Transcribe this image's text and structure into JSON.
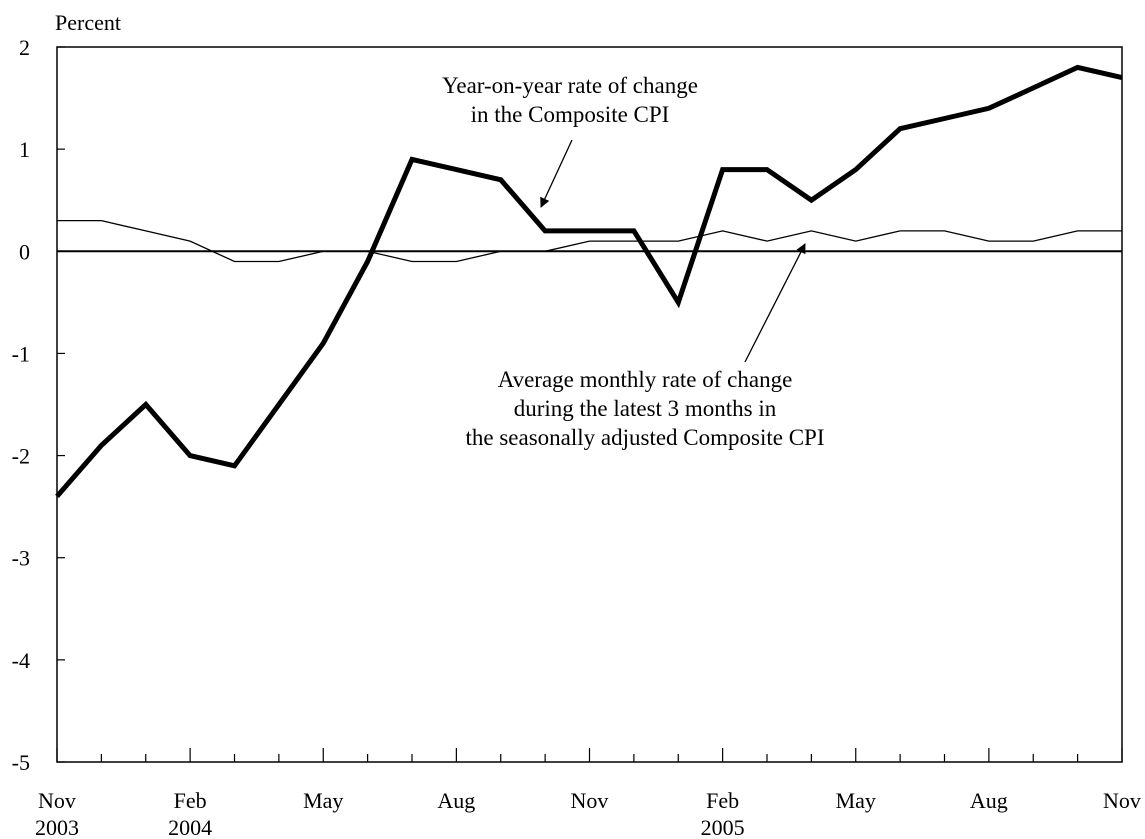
{
  "chart_data": {
    "type": "line",
    "title": "",
    "ylabel": "Percent",
    "xlabel": "",
    "ylim": [
      -5,
      2
    ],
    "yticks": [
      2,
      1,
      0,
      -1,
      -2,
      -3,
      -4,
      -5
    ],
    "grid": false,
    "x_months": [
      "2003-11",
      "2003-12",
      "2004-01",
      "2004-02",
      "2004-03",
      "2004-04",
      "2004-05",
      "2004-06",
      "2004-07",
      "2004-08",
      "2004-09",
      "2004-10",
      "2004-11",
      "2004-12",
      "2005-01",
      "2005-02",
      "2005-03",
      "2005-04",
      "2005-05",
      "2005-06",
      "2005-07",
      "2005-08",
      "2005-09",
      "2005-10",
      "2005-11"
    ],
    "x_tick_labels": [
      {
        "month": "2003-11",
        "label": "Nov",
        "year": "2003"
      },
      {
        "month": "2004-02",
        "label": "Feb",
        "year": "2004"
      },
      {
        "month": "2004-05",
        "label": "May",
        "year": ""
      },
      {
        "month": "2004-08",
        "label": "Aug",
        "year": ""
      },
      {
        "month": "2004-11",
        "label": "Nov",
        "year": ""
      },
      {
        "month": "2005-02",
        "label": "Feb",
        "year": "2005"
      },
      {
        "month": "2005-05",
        "label": "May",
        "year": ""
      },
      {
        "month": "2005-08",
        "label": "Aug",
        "year": ""
      },
      {
        "month": "2005-11",
        "label": "Nov",
        "year": ""
      }
    ],
    "series": [
      {
        "style": "thick",
        "values": [
          -2.4,
          -1.9,
          -1.5,
          -2.0,
          -2.1,
          -1.5,
          -0.9,
          -0.1,
          0.9,
          0.8,
          0.7,
          0.2,
          0.2,
          0.2,
          -0.5,
          0.8,
          0.8,
          0.5,
          0.8,
          1.2,
          1.3,
          1.4,
          1.6,
          1.8,
          1.7
        ]
      },
      {
        "style": "thin",
        "values": [
          0.3,
          0.3,
          0.2,
          0.1,
          -0.1,
          -0.1,
          0.0,
          0.0,
          -0.1,
          -0.1,
          0.0,
          0.0,
          0.1,
          0.1,
          0.1,
          0.2,
          0.1,
          0.2,
          0.1,
          0.2,
          0.2,
          0.1,
          0.1,
          0.2,
          0.2
        ]
      }
    ],
    "annotations": [
      {
        "lines": [
          "Year-on-year rate of change",
          "in the Composite CPI"
        ],
        "points_to_series": 0,
        "points_to_month": "2004-10"
      },
      {
        "lines": [
          "Average monthly rate of change",
          "during the latest 3 months in",
          "the seasonally adjusted Composite CPI"
        ],
        "points_to_series": 1,
        "points_to_month": "2005-04"
      }
    ]
  }
}
